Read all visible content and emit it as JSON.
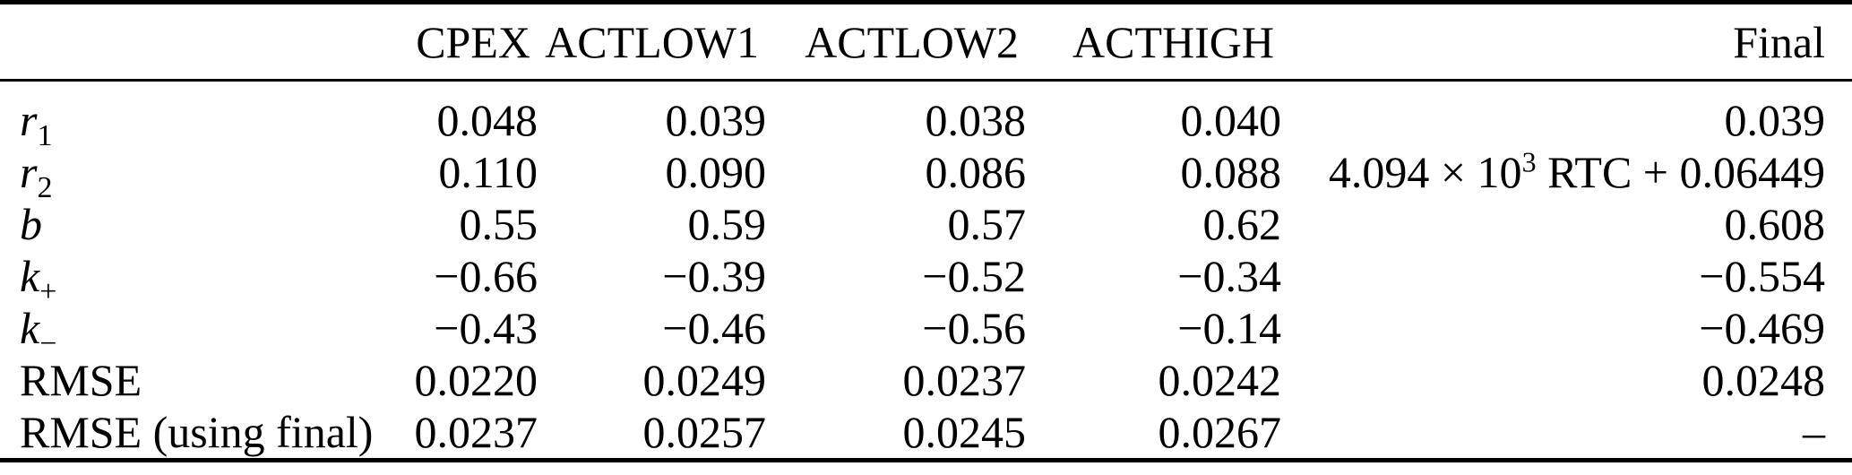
{
  "table": {
    "columns": [
      "",
      "CPEX",
      "ACTLOW1",
      "ACTLOW2",
      "ACTHIGH",
      "Final"
    ],
    "rows": [
      {
        "label": {
          "base": "r",
          "sub": "1"
        },
        "cpex": "0.048",
        "actlow1": "0.039",
        "actlow2": "0.038",
        "acthigh": "0.040",
        "final": {
          "pre": "0.039",
          "sup": "",
          "post": ""
        }
      },
      {
        "label": {
          "base": "r",
          "sub": "2"
        },
        "cpex": "0.110",
        "actlow1": "0.090",
        "actlow2": "0.086",
        "acthigh": "0.088",
        "final": {
          "pre": "4.094 × 10",
          "sup": "3",
          "post": " RTC + 0.06449"
        }
      },
      {
        "label": {
          "base": "b",
          "sub": ""
        },
        "cpex": "0.55",
        "actlow1": "0.59",
        "actlow2": "0.57",
        "acthigh": "0.62",
        "final": {
          "pre": "0.608",
          "sup": "",
          "post": ""
        }
      },
      {
        "label": {
          "base": "k",
          "sub": "+"
        },
        "cpex": "−0.66",
        "actlow1": "−0.39",
        "actlow2": "−0.52",
        "acthigh": "−0.34",
        "final": {
          "pre": "−0.554",
          "sup": "",
          "post": ""
        }
      },
      {
        "label": {
          "base": "k",
          "sub": "−"
        },
        "cpex": "−0.43",
        "actlow1": "−0.46",
        "actlow2": "−0.56",
        "acthigh": "−0.14",
        "final": {
          "pre": "−0.469",
          "sup": "",
          "post": ""
        }
      },
      {
        "label": {
          "base": "RMSE",
          "sub": ""
        },
        "cpex": "0.0220",
        "actlow1": "0.0249",
        "actlow2": "0.0237",
        "acthigh": "0.0242",
        "final": {
          "pre": "0.0248",
          "sup": "",
          "post": ""
        }
      },
      {
        "label": {
          "base": "RMSE (using final)",
          "sub": ""
        },
        "cpex": "0.0237",
        "actlow1": "0.0257",
        "actlow2": "0.0245",
        "acthigh": "0.0267",
        "final": {
          "pre": "–",
          "sup": "",
          "post": ""
        }
      }
    ]
  }
}
